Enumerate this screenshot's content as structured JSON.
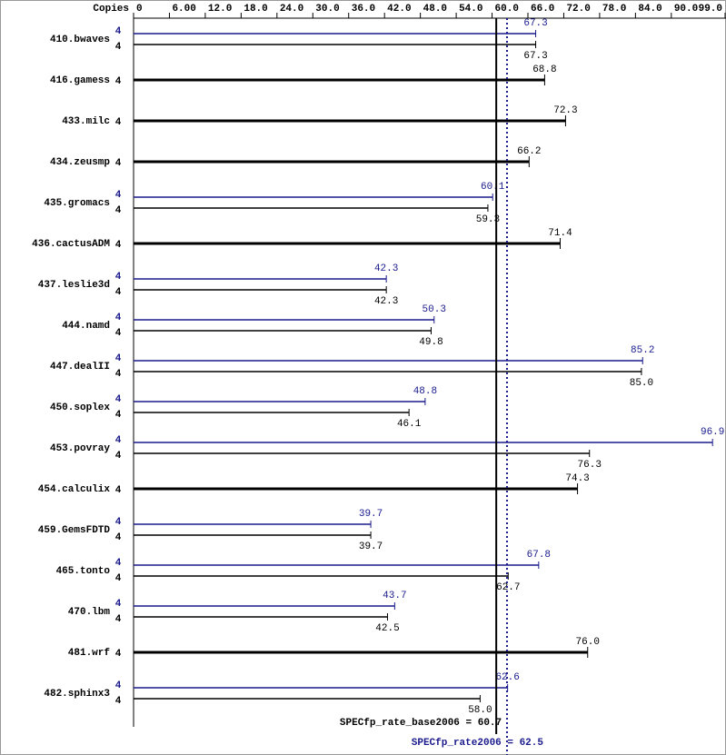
{
  "chart_data": {
    "type": "bar",
    "orientation": "horizontal",
    "copies_header": "Copies",
    "categories": [
      "410.bwaves",
      "416.gamess",
      "433.milc",
      "434.zeusmp",
      "435.gromacs",
      "436.cactusADM",
      "437.leslie3d",
      "444.namd",
      "447.dealII",
      "450.soplex",
      "453.povray",
      "454.calculix",
      "459.GemsFDTD",
      "465.tonto",
      "470.lbm",
      "481.wrf",
      "482.sphinx3"
    ],
    "series": [
      {
        "color": "#1a1a8c",
        "copies": [
          4,
          null,
          null,
          null,
          4,
          null,
          4,
          4,
          4,
          4,
          4,
          null,
          4,
          4,
          4,
          null,
          4
        ],
        "values": [
          67.3,
          null,
          null,
          null,
          60.1,
          null,
          42.3,
          50.3,
          85.2,
          48.8,
          96.9,
          null,
          39.7,
          67.8,
          43.7,
          null,
          62.6
        ],
        "value_labels": [
          "67.3",
          null,
          null,
          null,
          "60.1",
          null,
          "42.3",
          "50.3",
          "85.2",
          "48.8",
          "96.9",
          null,
          "39.7",
          "67.8",
          "43.7",
          null,
          "62.6"
        ]
      },
      {
        "color": "#000000",
        "copies": [
          4,
          4,
          4,
          4,
          4,
          4,
          4,
          4,
          4,
          4,
          4,
          4,
          4,
          4,
          4,
          4,
          4
        ],
        "values": [
          67.3,
          68.8,
          72.3,
          66.2,
          59.3,
          71.4,
          42.3,
          49.8,
          85.0,
          46.1,
          76.3,
          74.3,
          39.7,
          62.7,
          42.5,
          76.0,
          58.0
        ],
        "value_labels": [
          "67.3",
          "68.8",
          "72.3",
          "66.2",
          "59.3",
          "71.4",
          "42.3",
          "49.8",
          "85.0",
          "46.1",
          "76.3",
          "74.3",
          "39.7",
          "62.7",
          "42.5",
          "76.0",
          "58.0"
        ]
      }
    ],
    "xlim": [
      0,
      99
    ],
    "xticks": [
      0,
      {
        "value": 6,
        "label": "6.00"
      },
      {
        "value": 12,
        "label": "12.0"
      },
      {
        "value": 18,
        "label": "18.0"
      },
      {
        "value": 24,
        "label": "24.0"
      },
      {
        "value": 30,
        "label": "30.0"
      },
      {
        "value": 36,
        "label": "36.0"
      },
      {
        "value": 42,
        "label": "42.0"
      },
      {
        "value": 48,
        "label": "48.0"
      },
      {
        "value": 54,
        "label": "54.0"
      },
      {
        "value": 60,
        "label": "60.0"
      },
      {
        "value": 66,
        "label": "66.0"
      },
      {
        "value": 72,
        "label": "72.0"
      },
      {
        "value": 78,
        "label": "78.0"
      },
      {
        "value": 84,
        "label": "84.0"
      },
      {
        "value": 90,
        "label": "90.0"
      },
      {
        "value": 99,
        "label": "99.0"
      }
    ],
    "reference_lines": [
      {
        "label": "SPECfp_rate_base2006 =",
        "value": 60.7,
        "value_label": "60.7",
        "color": "#000000",
        "style": "solid"
      },
      {
        "label": "SPECfp_rate2006 =",
        "value": 62.5,
        "value_label": "62.5",
        "color": "#1a1a8c",
        "style": "dotted"
      }
    ]
  }
}
